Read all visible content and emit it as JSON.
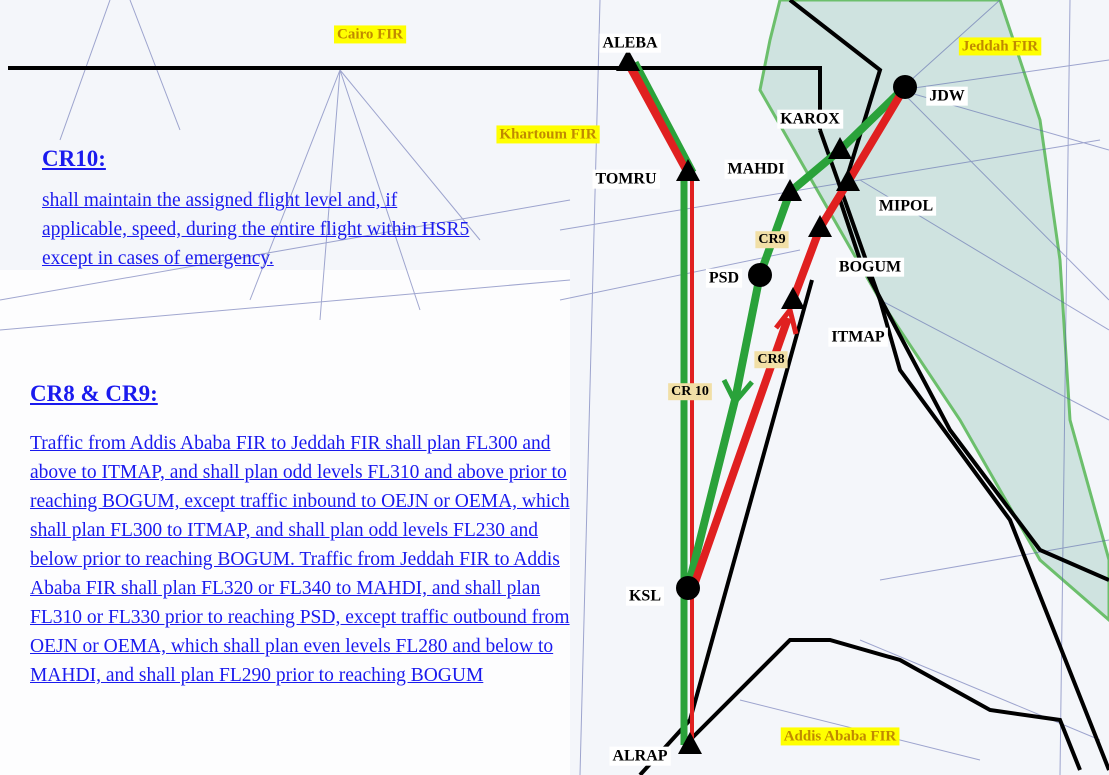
{
  "firs": [
    "Cairo FIR",
    "Jeddah FIR",
    "Khartoum FIR",
    "Addis Ababa FIR"
  ],
  "waypoints": [
    "ALEBA",
    "JDW",
    "KAROX",
    "TOMRU",
    "MAHDI",
    "MIPOL",
    "PSD",
    "BOGUM",
    "ITMAP",
    "KSL",
    "ALRAP"
  ],
  "route_labels": [
    "CR9",
    "CR 10",
    "CR8"
  ],
  "notes": [
    {
      "heading": "CR10:",
      "text": "shall maintain the assigned flight level and, if applicable, speed, during the entire flight within HSR5 except in cases of emergency."
    },
    {
      "heading": "CR8 & CR9:",
      "text": "Traffic from Addis Ababa FIR to Jeddah FIR shall plan FL300 and above to ITMAP, and shall plan odd levels FL310 and above prior to reaching BOGUM, except traffic inbound to OEJN or OEMA, which shall plan FL300 to ITMAP, and shall plan odd levels FL230 and below prior to reaching BOGUM. Traffic from Jeddah FIR to Addis Ababa FIR shall plan FL320 or FL340 to MAHDI, and shall plan FL310 or FL330 prior to reaching PSD, except traffic outbound from OEJN or OEMA, which shall plan even levels FL280 and below to MAHDI, and shall plan FL290 prior to reaching BOGUM"
    }
  ]
}
